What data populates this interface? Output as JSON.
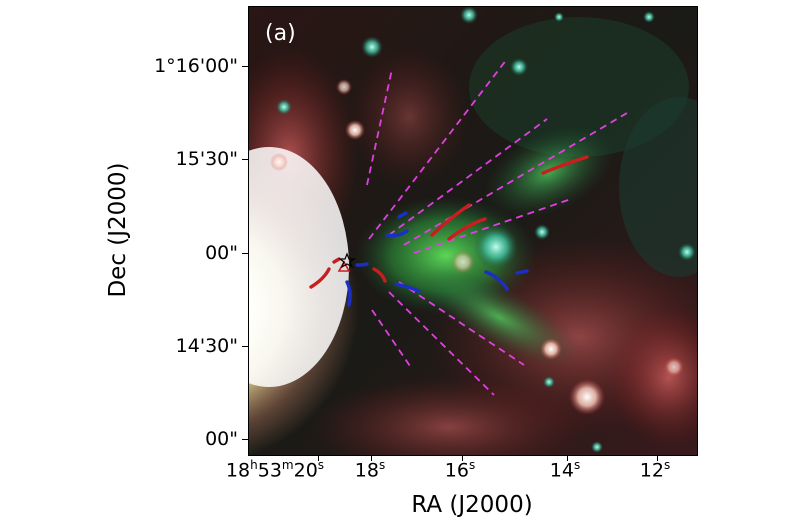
{
  "panel_label": "(a)",
  "y_axis": {
    "label": "Dec (J2000)",
    "ticks": [
      "1°16'00\"",
      "15'30\"",
      "00\"",
      "14'30\"",
      "00\""
    ]
  },
  "x_axis": {
    "label": "RA (J2000)",
    "tick_prefix": "18",
    "tick_h": "h",
    "tick_53": "53",
    "tick_m": "m",
    "tick_20": "20",
    "tick_s": "s",
    "ticks": [
      "18",
      "16",
      "14",
      "12"
    ]
  },
  "colors": {
    "dashed_lines": "#e040e0",
    "red_segments": "#c81e1e",
    "blue_segments": "#1a2ec8"
  },
  "markers": {
    "star": "star-icon",
    "triangle": "triangle-icon"
  }
}
